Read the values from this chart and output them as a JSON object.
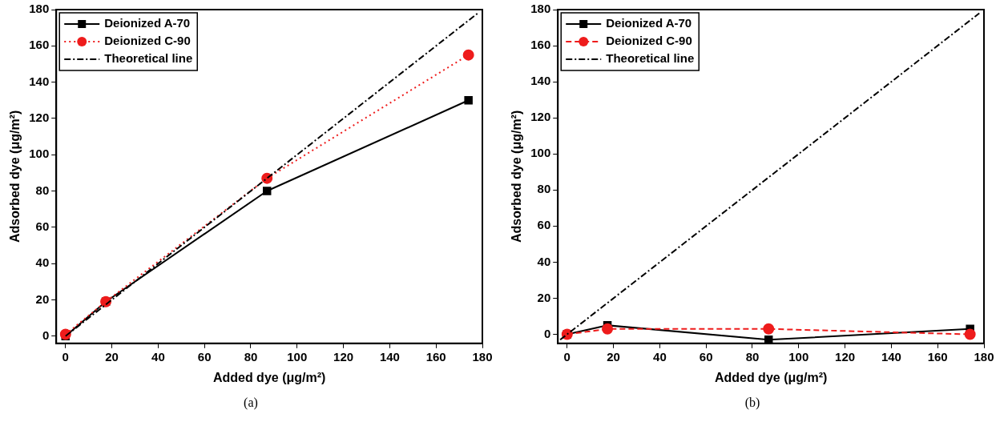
{
  "chart_data": [
    {
      "type": "line",
      "xlabel": "Added dye (μg/m²)",
      "ylabel": "Adsorbed dye (μg/m²)",
      "annotations": [
        "(a)"
      ],
      "xlim": [
        -4,
        180
      ],
      "ylim": [
        -4,
        180
      ],
      "xticks": [
        0,
        20,
        40,
        60,
        80,
        100,
        120,
        140,
        160,
        180
      ],
      "yticks": [
        0,
        20,
        40,
        60,
        80,
        100,
        120,
        140,
        160,
        180
      ],
      "legend": "top left",
      "grid": false,
      "series": [
        {
          "name": "Deionized A-70",
          "color": "#000000",
          "marker": "square",
          "line_style": "solid",
          "x": [
            0,
            17.4,
            87,
            174
          ],
          "values": [
            0,
            19,
            80,
            130
          ]
        },
        {
          "name": "Deionized C-90",
          "color": "#ee1c1c",
          "marker": "circle",
          "line_style": "dotted",
          "x": [
            0,
            17.4,
            87,
            174
          ],
          "values": [
            1,
            19,
            87,
            155
          ]
        },
        {
          "name": "Theoretical line",
          "color": "#000000",
          "marker": "none",
          "line_style": "dashdot",
          "x": [
            0,
            178
          ],
          "values": [
            0,
            178
          ]
        }
      ]
    },
    {
      "type": "line",
      "xlabel": "Added dye (μg/m²)",
      "ylabel": "Adsorbed dye (μg/m²)",
      "annotations": [
        "(b)"
      ],
      "xlim": [
        -4,
        180
      ],
      "ylim": [
        -5,
        180
      ],
      "xticks": [
        0,
        20,
        40,
        60,
        80,
        100,
        120,
        140,
        160,
        180
      ],
      "yticks": [
        0,
        20,
        40,
        60,
        80,
        100,
        120,
        140,
        160,
        180
      ],
      "legend": "top left",
      "grid": false,
      "series": [
        {
          "name": "Deionized A-70",
          "color": "#000000",
          "marker": "square",
          "line_style": "solid",
          "x": [
            0,
            17.4,
            87,
            174
          ],
          "values": [
            0,
            5,
            -3,
            3
          ]
        },
        {
          "name": "Deionized C-90",
          "color": "#ee1c1c",
          "marker": "circle",
          "line_style": "dashed",
          "x": [
            0,
            17.4,
            87,
            174
          ],
          "values": [
            0,
            3,
            3,
            0
          ]
        },
        {
          "name": "Theoretical line",
          "color": "#000000",
          "marker": "none",
          "line_style": "dashdot",
          "x": [
            -3,
            178
          ],
          "values": [
            -3,
            178
          ]
        }
      ]
    }
  ]
}
